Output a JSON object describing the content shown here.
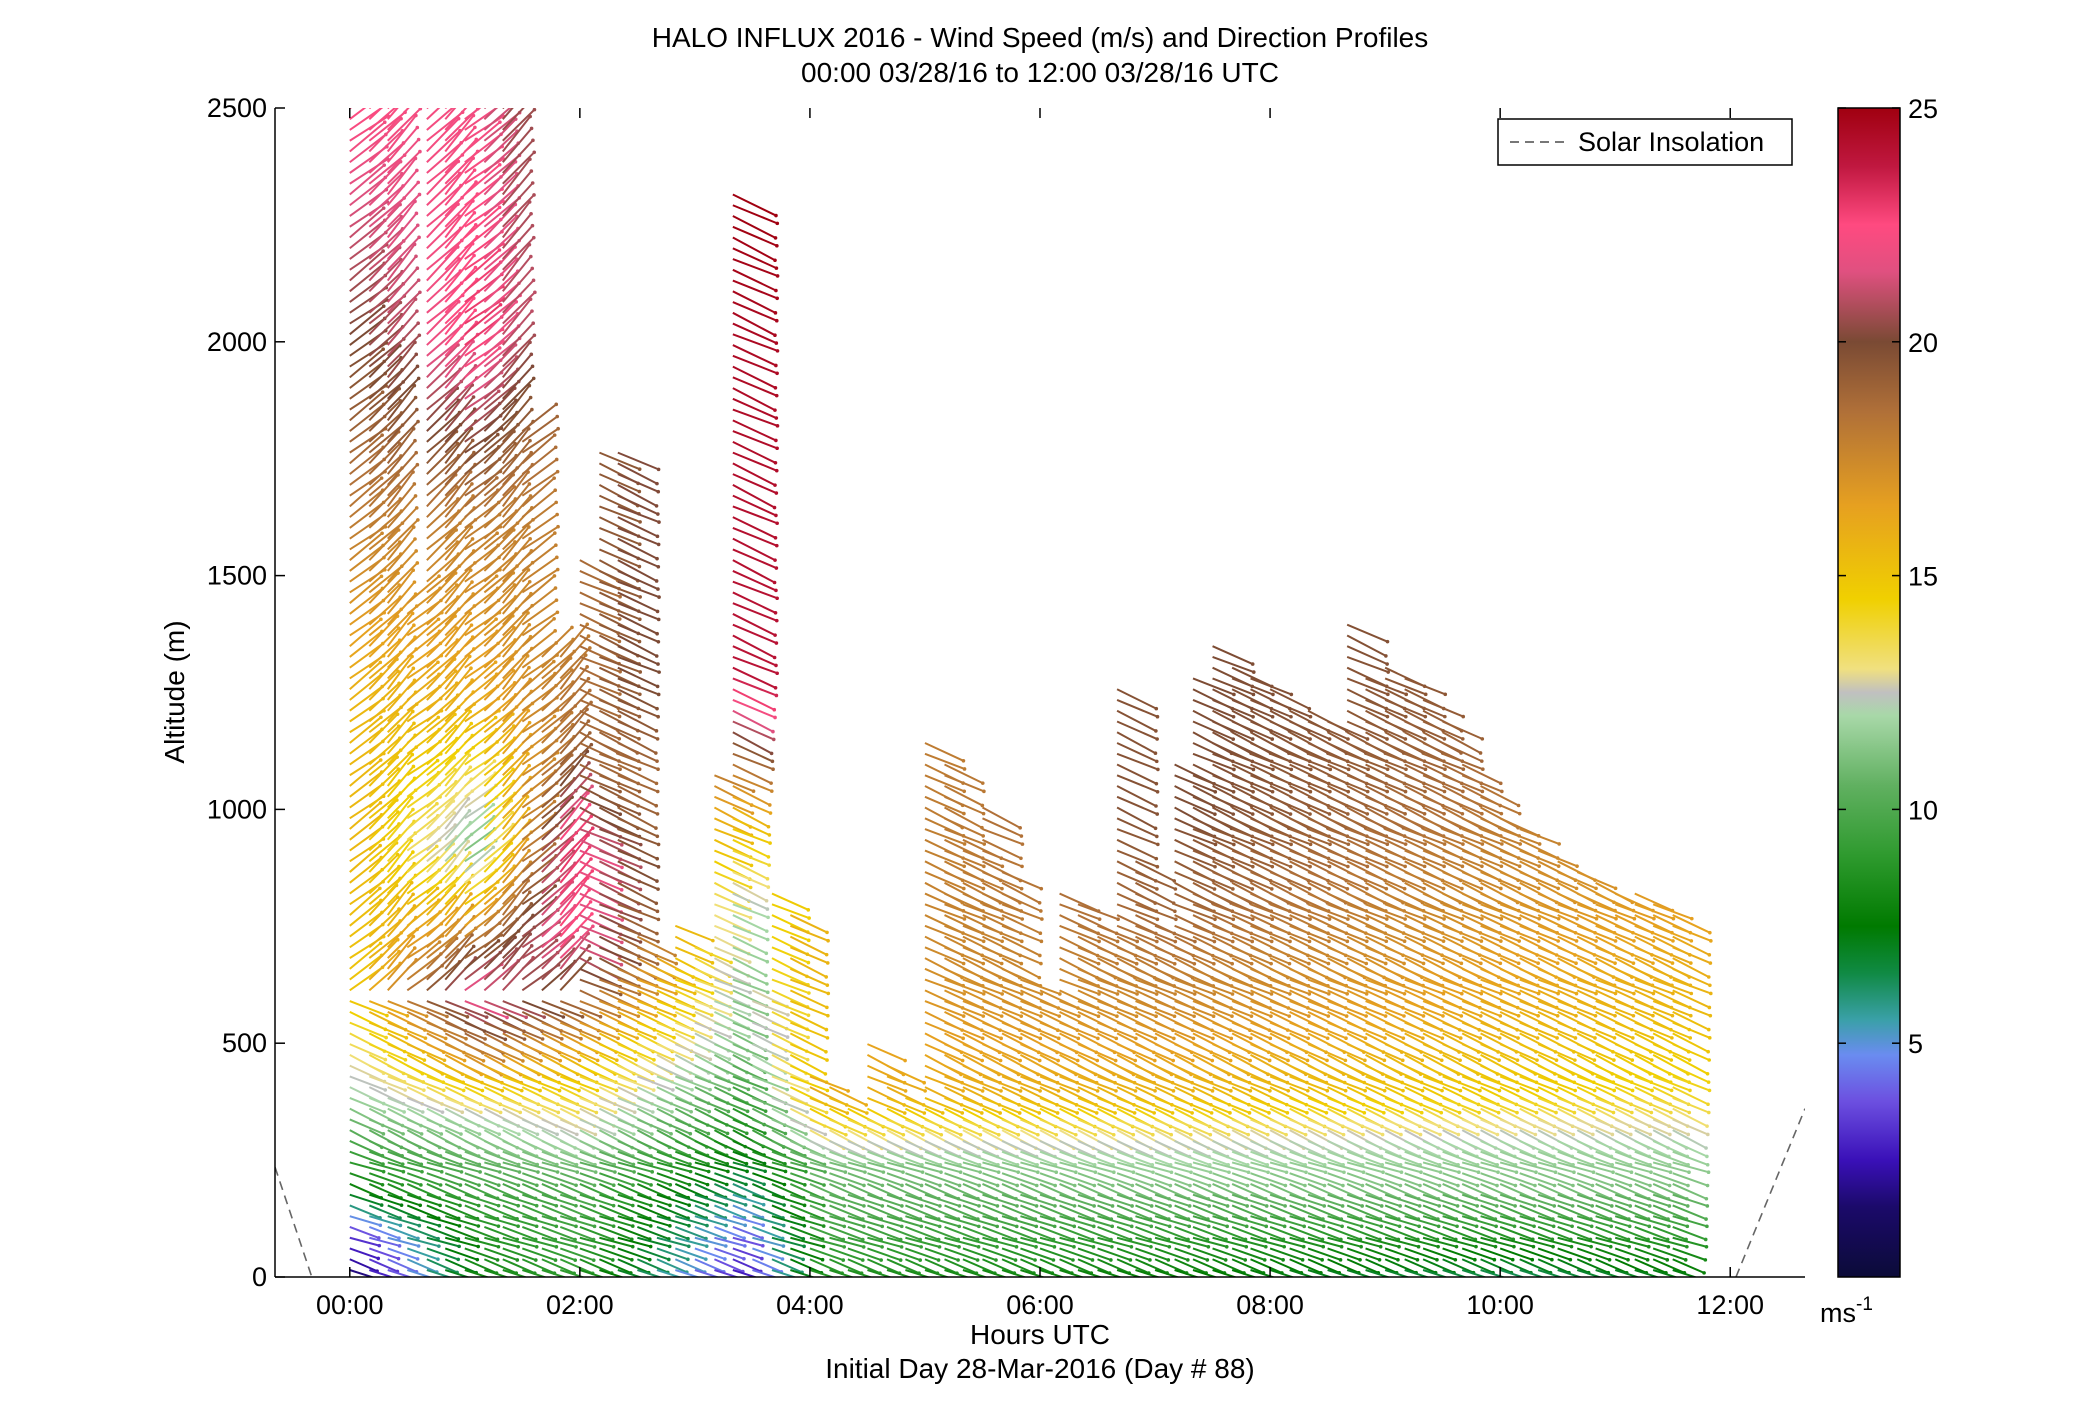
{
  "chart_data": {
    "type": "vector-field",
    "title": "HALO INFLUX 2016 - Wind Speed (m/s) and Direction Profiles",
    "subtitle": "00:00 03/28/16 to 12:00 03/28/16  UTC",
    "xlabel": "Hours UTC",
    "xlabel2": "Initial Day 28-Mar-2016 (Day # 88)",
    "ylabel": "Altitude (m)",
    "xlim": [
      -0.65,
      12.65
    ],
    "ylim": [
      0,
      2500
    ],
    "x_ticks": [
      0,
      2,
      4,
      6,
      8,
      10,
      12
    ],
    "x_tick_labels": [
      "00:00",
      "02:00",
      "04:00",
      "06:00",
      "08:00",
      "10:00",
      "12:00"
    ],
    "y_ticks": [
      0,
      500,
      1000,
      1500,
      2000,
      2500
    ],
    "y_tick_labels": [
      "0",
      "500",
      "1000",
      "1500",
      "2000",
      "2500"
    ],
    "colorbar": {
      "range": [
        0,
        25
      ],
      "ticks": [
        5,
        10,
        15,
        20,
        25
      ],
      "tick_labels": [
        "5",
        "10",
        "15",
        "20",
        "25"
      ],
      "unit": "ms",
      "unit_exp": "-1"
    },
    "legend": {
      "position": "top-right",
      "entries": [
        "Solar Insolation"
      ]
    },
    "solar_insolation": {
      "left": [
        [
          -0.65,
          235
        ],
        [
          -0.33,
          0
        ]
      ],
      "right": [
        [
          12.05,
          0
        ],
        [
          12.65,
          360
        ]
      ]
    },
    "profile_times": [
      0,
      0.17,
      0.33,
      0.5,
      0.67,
      0.83,
      1.0,
      1.17,
      1.33,
      1.5,
      1.67,
      1.83,
      2.0,
      2.17,
      2.33,
      2.5,
      2.67,
      2.83,
      3.0,
      3.17,
      3.33,
      3.5,
      3.67,
      3.83,
      4.0,
      4.17,
      4.33,
      4.5,
      4.67,
      4.83,
      5.0,
      5.17,
      5.33,
      5.5,
      5.67,
      5.83,
      6.0,
      6.17,
      6.33,
      6.5,
      6.67,
      6.83,
      7.0,
      7.17,
      7.33,
      7.5,
      7.67,
      7.83,
      8.0,
      8.17,
      8.33,
      8.5,
      8.67,
      8.83,
      9.0,
      9.17,
      9.33,
      9.5,
      9.67,
      9.83,
      10.0,
      10.17,
      10.33,
      10.5,
      10.67,
      10.83,
      11.0,
      11.17,
      11.33,
      11.5
    ],
    "profile_top_altitudes": [
      2500,
      2500,
      2500,
      1450,
      2500,
      2500,
      2500,
      2500,
      2500,
      1830,
      1340,
      1330,
      1540,
      1780,
      1780,
      730,
      700,
      760,
      720,
      1080,
      2320,
      620,
      820,
      780,
      440,
      420,
      380,
      500,
      460,
      400,
      1150,
      1100,
      940,
      1020,
      870,
      640,
      620,
      840,
      800,
      760,
      1270,
      900,
      770,
      1110,
      1280,
      1350,
      1320,
      1280,
      1260,
      1230,
      1220,
      1210,
      1400,
      1300,
      1310,
      1300,
      1250,
      1200,
      1100,
      1050,
      1000,
      960,
      920,
      900,
      880,
      860,
      840,
      820,
      800,
      790
    ],
    "speed_profile_anchors": [
      {
        "t": 0.0,
        "alts": [
          0,
          100,
          200,
          400,
          600,
          900,
          1200,
          1600,
          2000,
          2500
        ],
        "speeds": [
          1.5,
          3.5,
          8.0,
          12.0,
          15.0,
          15.5,
          15.5,
          18.0,
          20.0,
          22.5
        ]
      },
      {
        "t": 1.0,
        "alts": [
          0,
          150,
          350,
          600,
          900,
          1200,
          1600,
          2000,
          2500
        ],
        "speeds": [
          8.0,
          9.0,
          12.0,
          22.0,
          11.0,
          16.0,
          18.0,
          23.0,
          22.0
        ]
      },
      {
        "t": 1.83,
        "alts": [
          0,
          200,
          500,
          700,
          900,
          1100,
          1300
        ],
        "speeds": [
          9.0,
          10.0,
          16.0,
          22.5,
          23.0,
          19.0,
          18.0
        ]
      },
      {
        "t": 3.33,
        "alts": [
          0,
          100,
          300,
          500,
          800,
          1000,
          1300,
          2000,
          2300
        ],
        "speeds": [
          2.5,
          4.0,
          8.0,
          11.0,
          12.0,
          15.5,
          24.0,
          24.5,
          25.0
        ]
      },
      {
        "t": 4.0,
        "alts": [
          0,
          100,
          250,
          400,
          700
        ],
        "speeds": [
          8.5,
          9.5,
          11.0,
          16.0,
          17.0
        ]
      },
      {
        "t": 7.0,
        "alts": [
          0,
          100,
          200,
          300,
          400,
          600,
          800,
          1000
        ],
        "speeds": [
          7.5,
          9.0,
          11.0,
          12.5,
          15.5,
          17.5,
          19.0,
          20.0
        ]
      },
      {
        "t": 10.0,
        "alts": [
          0,
          100,
          200,
          300,
          400,
          600,
          900,
          1200,
          1350
        ],
        "speeds": [
          6.0,
          8.5,
          11.0,
          12.0,
          14.5,
          16.0,
          17.5,
          19.0,
          19.5
        ]
      },
      {
        "t": 11.5,
        "alts": [
          0,
          100,
          200,
          300,
          400,
          600,
          900,
          1300
        ],
        "speeds": [
          7.0,
          9.0,
          11.0,
          12.0,
          14.0,
          15.5,
          17.0,
          18.0
        ]
      }
    ]
  }
}
